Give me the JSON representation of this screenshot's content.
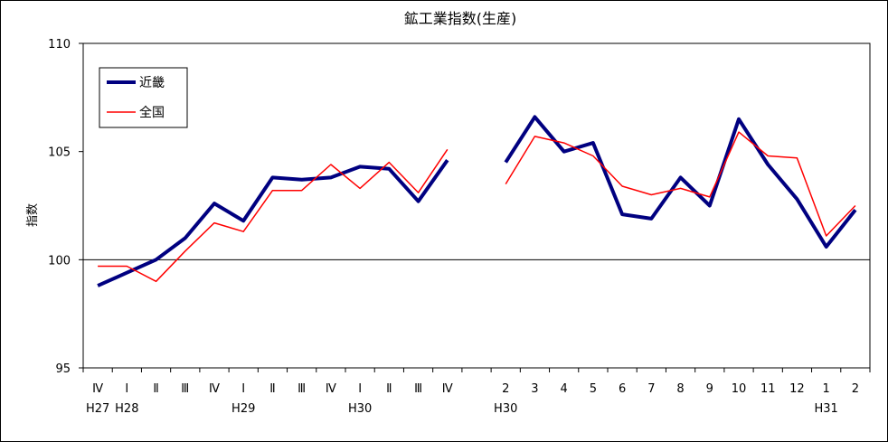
{
  "chart_data": {
    "type": "line",
    "title": "鉱工業指数(生産)",
    "ylabel": "指数",
    "ylim": [
      95,
      110
    ],
    "yticks": [
      "95",
      "100",
      "105",
      "110"
    ],
    "reference_line": 100,
    "x_labels": [
      "Ⅳ",
      "Ⅰ",
      "Ⅱ",
      "Ⅲ",
      "Ⅳ",
      "Ⅰ",
      "Ⅱ",
      "Ⅲ",
      "Ⅳ",
      "Ⅰ",
      "Ⅱ",
      "Ⅲ",
      "Ⅳ",
      "",
      "2",
      "3",
      "4",
      "5",
      "6",
      "7",
      "8",
      "9",
      "10",
      "11",
      "12",
      "1",
      "2"
    ],
    "x_sublabels": [
      "H27",
      "H28",
      "",
      "",
      "",
      "H29",
      "",
      "",
      "",
      "H30",
      "",
      "",
      "",
      "",
      "H30",
      "",
      "",
      "",
      "",
      "",
      "",
      "",
      "",
      "",
      "",
      "H31",
      ""
    ],
    "series": [
      {
        "name": "近畿",
        "color": "#000080",
        "values": [
          98.8,
          99.4,
          100.0,
          101.0,
          102.6,
          101.8,
          103.8,
          103.7,
          103.8,
          104.3,
          104.2,
          102.7,
          104.6,
          null,
          104.5,
          106.6,
          105.0,
          105.4,
          102.1,
          101.9,
          103.8,
          102.5,
          106.5,
          104.4,
          102.8,
          100.6,
          102.3
        ]
      },
      {
        "name": "全国",
        "color": "#ff0000",
        "values": [
          99.7,
          99.7,
          99.0,
          100.4,
          101.7,
          101.3,
          103.2,
          103.2,
          104.4,
          103.3,
          104.5,
          103.1,
          105.1,
          null,
          103.5,
          105.7,
          105.4,
          104.8,
          103.4,
          103.0,
          103.3,
          102.9,
          105.9,
          104.8,
          104.7,
          101.1,
          102.5
        ]
      }
    ]
  }
}
